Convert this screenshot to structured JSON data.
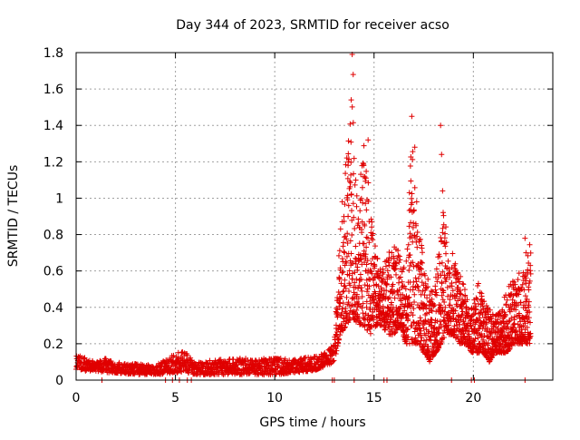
{
  "chart_data": {
    "type": "scatter",
    "title": "Day 344 of 2023, SRMTID for receiver acso",
    "xlabel": "GPS time / hours",
    "ylabel": "SRMTID / TECUs",
    "xlim": [
      0,
      24
    ],
    "ylim": [
      0,
      1.8
    ],
    "xticks": [
      "0",
      "5",
      "10",
      "15",
      "20"
    ],
    "yticks": [
      "0",
      "0.2",
      "0.4",
      "0.6",
      "0.8",
      "1",
      "1.2",
      "1.4",
      "1.6",
      "1.8"
    ],
    "grid": true,
    "marker": "plus",
    "series_color": "#e00000",
    "envelope": {
      "x": [
        0,
        0.5,
        1,
        1.5,
        2,
        3,
        4,
        5,
        5.5,
        6,
        7,
        8,
        9,
        10,
        11,
        12,
        12.5,
        13,
        13.3,
        13.6,
        13.9,
        14.2,
        14.5,
        14.8,
        15.1,
        15.4,
        15.7,
        16,
        16.3,
        16.6,
        16.9,
        17.2,
        17.5,
        17.8,
        18.1,
        18.4,
        18.7,
        19,
        19.3,
        19.6,
        19.9,
        20.2,
        20.5,
        20.8,
        21.1,
        21.4,
        21.7,
        22,
        22.3,
        22.6,
        22.9
      ],
      "low": [
        0.06,
        0.05,
        0.05,
        0.04,
        0.04,
        0.03,
        0.03,
        0.04,
        0.04,
        0.03,
        0.03,
        0.03,
        0.03,
        0.03,
        0.04,
        0.05,
        0.07,
        0.1,
        0.25,
        0.3,
        0.35,
        0.3,
        0.3,
        0.25,
        0.3,
        0.3,
        0.25,
        0.25,
        0.3,
        0.2,
        0.2,
        0.2,
        0.15,
        0.1,
        0.15,
        0.2,
        0.25,
        0.25,
        0.2,
        0.2,
        0.15,
        0.15,
        0.15,
        0.1,
        0.15,
        0.15,
        0.15,
        0.2,
        0.2,
        0.2,
        0.2
      ],
      "high": [
        0.14,
        0.12,
        0.1,
        0.12,
        0.1,
        0.09,
        0.08,
        0.15,
        0.16,
        0.1,
        0.11,
        0.12,
        0.12,
        0.12,
        0.12,
        0.13,
        0.15,
        0.2,
        0.85,
        1.25,
        1.6,
        1.0,
        1.3,
        1.0,
        0.7,
        0.6,
        0.7,
        0.8,
        0.7,
        0.6,
        1.45,
        0.9,
        0.7,
        0.5,
        0.55,
        1.0,
        0.8,
        0.7,
        0.6,
        0.5,
        0.4,
        0.55,
        0.45,
        0.4,
        0.35,
        0.4,
        0.5,
        0.55,
        0.6,
        0.6,
        0.8
      ]
    },
    "outliers": [
      {
        "x": 13.9,
        "y": 1.79
      },
      {
        "x": 13.95,
        "y": 1.68
      },
      {
        "x": 13.85,
        "y": 1.54
      },
      {
        "x": 16.9,
        "y": 1.45
      },
      {
        "x": 18.35,
        "y": 1.4
      },
      {
        "x": 17.05,
        "y": 1.28
      },
      {
        "x": 18.4,
        "y": 1.24
      },
      {
        "x": 13.7,
        "y": 1.2
      },
      {
        "x": 14.7,
        "y": 1.32
      },
      {
        "x": 18.45,
        "y": 1.04
      },
      {
        "x": 22.6,
        "y": 0.78
      },
      {
        "x": 22.65,
        "y": 0.7
      }
    ],
    "zero_marks_x": [
      1.3,
      4.5,
      4.85,
      5.2,
      5.6,
      5.8,
      12.9,
      13.0,
      14.0,
      15.5,
      15.65,
      18.9,
      19.9,
      20.05,
      22.6
    ]
  }
}
